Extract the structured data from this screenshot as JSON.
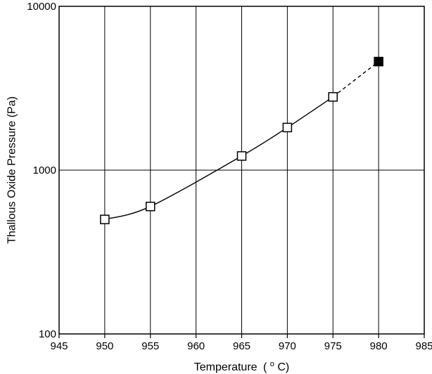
{
  "chart_data": {
    "type": "line",
    "title": "",
    "xlabel": "Temperature",
    "xlabel_unit_prefix": "(",
    "xlabel_unit_sup": "o",
    "xlabel_unit_suffix": "C)",
    "ylabel": "Thallous Oxide Pressure (Pa)",
    "xlim": [
      945,
      985
    ],
    "ylim": [
      100,
      10000
    ],
    "yscale": "log",
    "grid": true,
    "xticks": [
      945,
      950,
      955,
      960,
      965,
      970,
      975,
      980,
      985
    ],
    "xtick_labels": [
      "945",
      "950",
      "955",
      "960",
      "965",
      "970",
      "975",
      "980",
      "985"
    ],
    "yticks": [
      100,
      1000,
      10000
    ],
    "ytick_labels": [
      "100",
      "1000",
      "10000"
    ],
    "series": [
      {
        "marker": "open-square",
        "line": "solid",
        "points": [
          {
            "x": 950,
            "y": 500
          },
          {
            "x": 955,
            "y": 600
          },
          {
            "x": 965,
            "y": 1220
          },
          {
            "x": 970,
            "y": 1820
          },
          {
            "x": 975,
            "y": 2800
          }
        ]
      },
      {
        "marker": "filled-square",
        "line": "dashed",
        "points": [
          {
            "x": 975,
            "y": 2800
          },
          {
            "x": 980,
            "y": 4600
          }
        ]
      }
    ]
  }
}
